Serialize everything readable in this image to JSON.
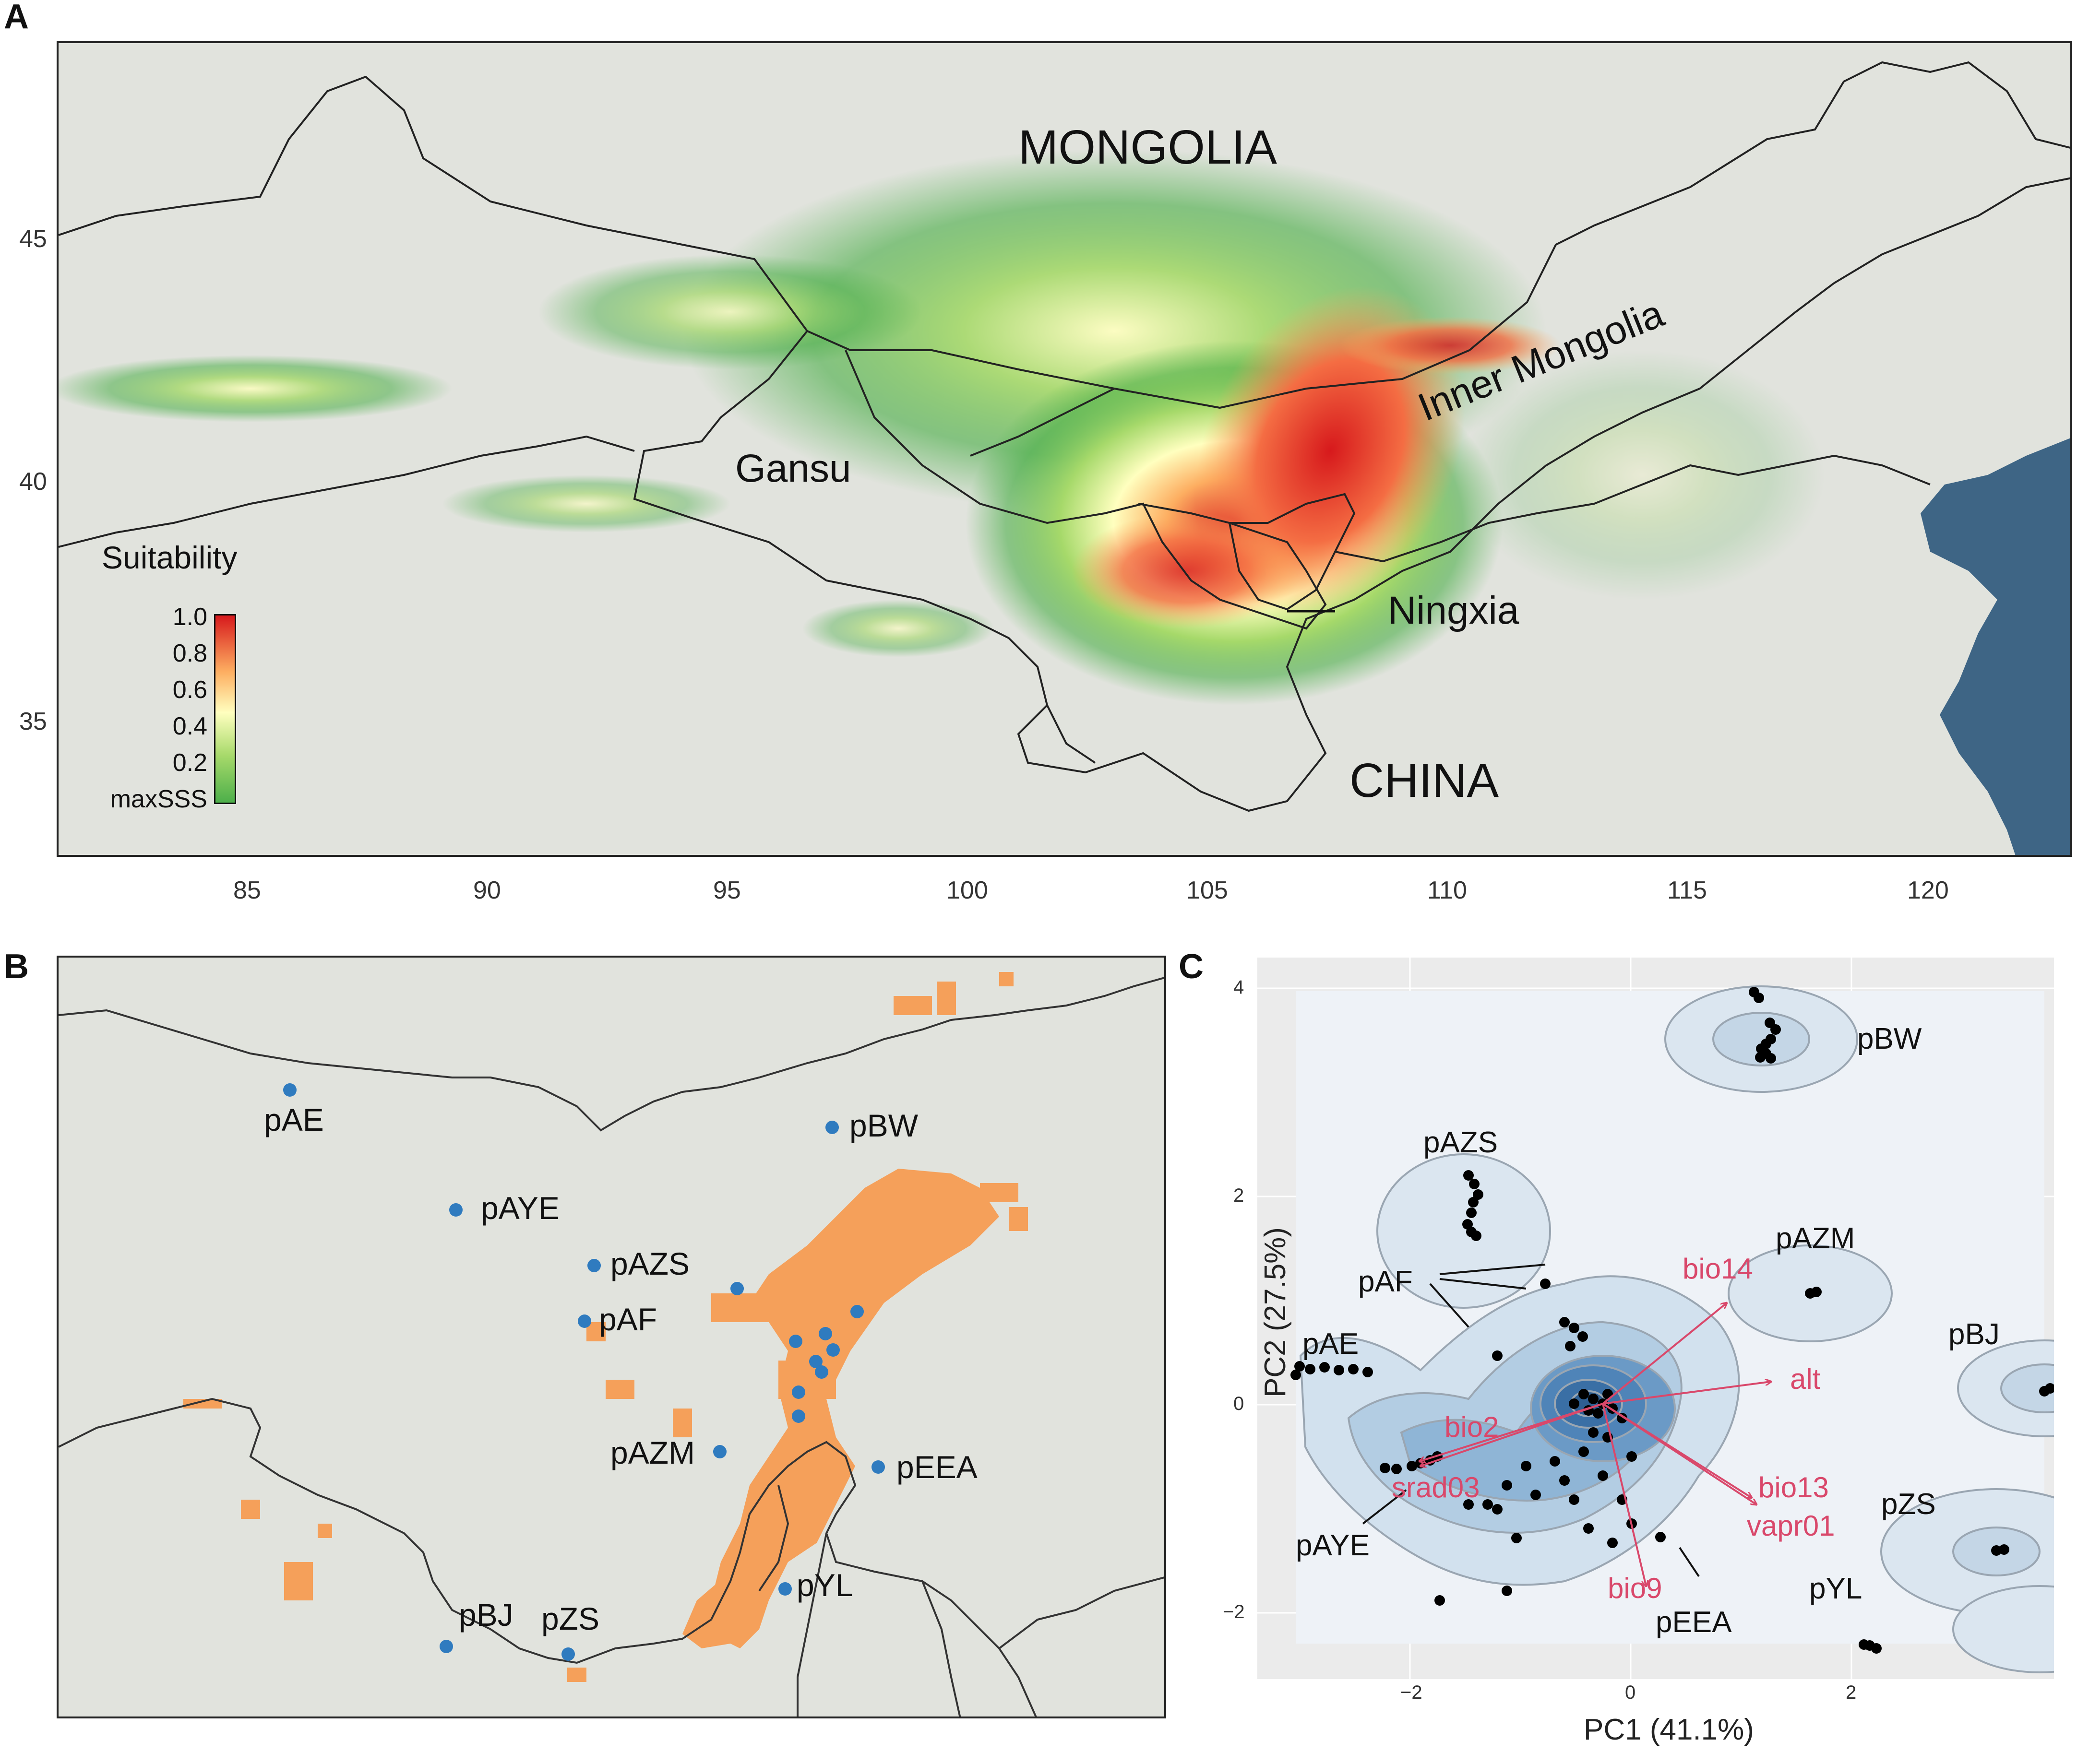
{
  "panels": {
    "a": {
      "letter": "A",
      "countries": {
        "mongolia": "MONGOLIA",
        "china": "CHINA"
      },
      "regions": {
        "gansu": "Gansu",
        "inner_mongolia": "Inner Mongolia",
        "ningxia": "Ningxia"
      },
      "legend": {
        "title": "Suitability",
        "ticks": [
          "1.0",
          "0.8",
          "0.6",
          "0.4",
          "0.2",
          "maxSSS"
        ],
        "colors": [
          "#d7191c",
          "#fdae61",
          "#ffffbf",
          "#a6d96a",
          "#4daf4a"
        ]
      },
      "x_ticks": [
        "85",
        "90",
        "95",
        "100",
        "105",
        "110",
        "115",
        "120"
      ],
      "y_ticks": [
        "45",
        "40",
        "35"
      ],
      "colors": {
        "background": "#e1e3dd",
        "sea": "#3e6585",
        "border": "#222222"
      }
    },
    "b": {
      "letter": "B",
      "sites": [
        {
          "label": "pAE"
        },
        {
          "label": "pBW"
        },
        {
          "label": "pAYE"
        },
        {
          "label": "pAZS"
        },
        {
          "label": "pAF"
        },
        {
          "label": "pAZM"
        },
        {
          "label": "pEEA"
        },
        {
          "label": "pYL"
        },
        {
          "label": "pBJ"
        },
        {
          "label": "pZS"
        }
      ],
      "colors": {
        "suitable": "#f5a05a",
        "site": "#2f7bbf",
        "background": "#e1e3dd"
      }
    },
    "c": {
      "letter": "C",
      "x_title": "PC1 (41.1%)",
      "y_title": "PC2 (27.5%)",
      "x_ticks": [
        "−2",
        "0",
        "2"
      ],
      "y_ticks": [
        "4",
        "2",
        "0",
        "−2"
      ],
      "groups": [
        "pBW",
        "pAZS",
        "pAZM",
        "pAF",
        "pAE",
        "pBJ",
        "pAYE",
        "pZS",
        "pYL",
        "pEEA"
      ],
      "variables": [
        "bio14",
        "alt",
        "bio2",
        "srad03",
        "bio13",
        "vapr01",
        "bio9"
      ],
      "colors": {
        "arrow": "#d9486b",
        "points": "#000000",
        "panel": "#ebebeb"
      }
    }
  }
}
